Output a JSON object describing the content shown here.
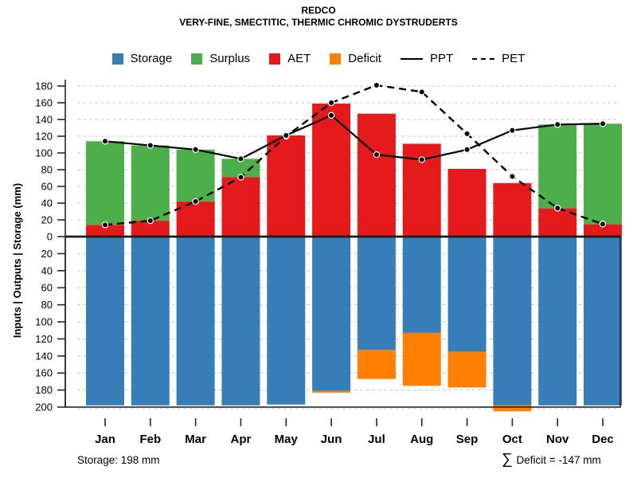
{
  "header": {
    "title": "REDCO",
    "subtitle": "VERY-FINE, SMECTITIC, THERMIC CHROMIC DYSTRUDERTS"
  },
  "legend": [
    {
      "label": "Storage",
      "marker": "square",
      "color": "#377EB8"
    },
    {
      "label": "Surplus",
      "marker": "square",
      "color": "#4DAF4A"
    },
    {
      "label": "AET",
      "marker": "square",
      "color": "#E41A1C"
    },
    {
      "label": "Deficit",
      "marker": "square",
      "color": "#FF7F00"
    },
    {
      "label": "PPT",
      "marker": "solid-line",
      "color": "#000000"
    },
    {
      "label": "PET",
      "marker": "dashed-line",
      "color": "#000000"
    }
  ],
  "footnotes": {
    "storage": "Storage: 198 mm",
    "deficit_sigma": "∑",
    "deficit_text": "Deficit = -147 mm"
  },
  "chart_data": {
    "type": "bar",
    "title": "REDCO",
    "subtitle": "VERY-FINE, SMECTITIC, THERMIC CHROMIC DYSTRUDERTS",
    "ylabel": "Inputs | Outputs | Storage  (mm)",
    "categories": [
      "Jan",
      "Feb",
      "Mar",
      "Apr",
      "May",
      "Jun",
      "Jul",
      "Aug",
      "Sep",
      "Oct",
      "Nov",
      "Dec"
    ],
    "upper_axis": {
      "min": 0,
      "max": 180,
      "step": 20,
      "direction": "up"
    },
    "lower_axis": {
      "min": 0,
      "max": 200,
      "step": 20,
      "direction": "down"
    },
    "grid": true,
    "legend_position": "top",
    "series": [
      {
        "name": "AET",
        "kind": "bar-upper-stack1",
        "color": "#E41A1C",
        "values": [
          14,
          19,
          42,
          71,
          121,
          159,
          147,
          111,
          81,
          64,
          34,
          15
        ]
      },
      {
        "name": "Surplus",
        "kind": "bar-upper-stack2",
        "color": "#4DAF4A",
        "values": [
          100,
          90,
          62,
          22,
          0,
          0,
          0,
          0,
          0,
          0,
          100,
          120
        ]
      },
      {
        "name": "Storage",
        "kind": "bar-lower-stack1",
        "color": "#377EB8",
        "values": [
          198,
          198,
          198,
          198,
          197,
          181,
          133,
          113,
          135,
          198,
          198,
          198
        ]
      },
      {
        "name": "Deficit",
        "kind": "bar-lower-stack2",
        "color": "#FF7F00",
        "values": [
          0,
          0,
          0,
          0,
          0,
          2,
          34,
          62,
          42,
          7,
          0,
          0
        ]
      },
      {
        "name": "PPT",
        "kind": "line-solid",
        "color": "#000000",
        "values": [
          114,
          109,
          104,
          93,
          121,
          145,
          98,
          92,
          104,
          127,
          134,
          135
        ]
      },
      {
        "name": "PET",
        "kind": "line-dashed",
        "color": "#000000",
        "values": [
          14,
          19,
          42,
          71,
          120,
          160,
          181,
          173,
          123,
          72,
          34,
          15
        ]
      }
    ],
    "annotations": {
      "storage_capacity_mm": 198,
      "total_deficit_mm": -147
    }
  }
}
